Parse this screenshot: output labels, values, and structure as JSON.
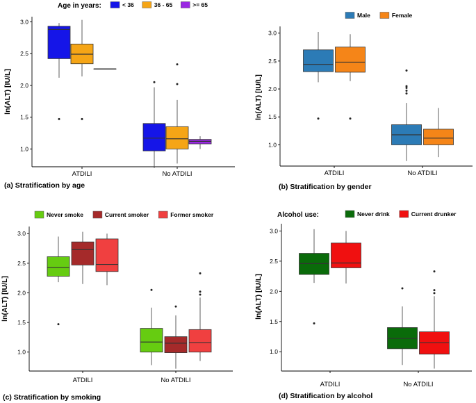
{
  "chart_data": [
    {
      "id": "a",
      "type": "box",
      "caption": "(a) Stratification by age",
      "ylabel": "ln(ALT) [IU/L]",
      "ylim": [
        0.72,
        3.08
      ],
      "yticks": [
        "1.0",
        "1.5",
        "2.0",
        "2.5",
        "3.0"
      ],
      "categories": [
        "ATDILI",
        "No ATDILI"
      ],
      "legend": {
        "title": "Age in years:",
        "items": [
          {
            "label": "< 36",
            "color": "#1515e8"
          },
          {
            "label": "36 - 65",
            "color": "#f5a516"
          },
          {
            "label": ">= 65",
            "color": "#9a28e3"
          }
        ]
      },
      "series": [
        {
          "name": "< 36",
          "color": "#1515e8",
          "boxes": [
            {
              "category": "ATDILI",
              "min": 2.12,
              "q1": 2.42,
              "median": 2.88,
              "q3": 2.93,
              "max": 2.98,
              "outliers": [
                1.47
              ]
            },
            {
              "category": "No ATDILI",
              "min": 0.7,
              "q1": 0.97,
              "median": 1.17,
              "q3": 1.4,
              "max": 1.97,
              "outliers": [
                2.05
              ]
            }
          ]
        },
        {
          "name": "36 - 65",
          "color": "#f5a516",
          "boxes": [
            {
              "category": "ATDILI",
              "min": 2.14,
              "q1": 2.34,
              "median": 2.49,
              "q3": 2.65,
              "max": 3.03,
              "outliers": [
                1.47
              ]
            },
            {
              "category": "No ATDILI",
              "min": 0.77,
              "q1": 1.0,
              "median": 1.16,
              "q3": 1.35,
              "max": 1.77,
              "outliers": [
                2.02,
                2.33
              ]
            }
          ]
        },
        {
          "name": ">= 65",
          "color": "#9a28e3",
          "boxes": [
            {
              "category": "ATDILI",
              "min": 2.26,
              "q1": 2.26,
              "median": 2.26,
              "q3": 2.26,
              "max": 2.26,
              "outliers": []
            },
            {
              "category": "No ATDILI",
              "min": 1.0,
              "q1": 1.08,
              "median": 1.12,
              "q3": 1.15,
              "max": 1.2,
              "outliers": []
            }
          ]
        }
      ]
    },
    {
      "id": "b",
      "type": "box",
      "caption": "(b) Stratification by gender",
      "ylabel": "ln(ALT) [IU/L]",
      "ylim": [
        0.62,
        3.12
      ],
      "yticks": [
        "1.0",
        "1.5",
        "2.0",
        "2.5",
        "3.0"
      ],
      "categories": [
        "ATDILI",
        "No ATDILI"
      ],
      "legend": {
        "title": "",
        "items": [
          {
            "label": "Male",
            "color": "#2c7bb6"
          },
          {
            "label": "Female",
            "color": "#f58518"
          }
        ]
      },
      "series": [
        {
          "name": "Male",
          "color": "#2c7bb6",
          "boxes": [
            {
              "category": "ATDILI",
              "min": 2.12,
              "q1": 2.31,
              "median": 2.44,
              "q3": 2.7,
              "max": 3.02,
              "outliers": [
                1.47
              ]
            },
            {
              "category": "No ATDILI",
              "min": 0.71,
              "q1": 1.0,
              "median": 1.18,
              "q3": 1.36,
              "max": 1.75,
              "outliers": [
                1.92,
                1.97,
                2.02,
                2.05,
                2.33
              ]
            }
          ]
        },
        {
          "name": "Female",
          "color": "#f58518",
          "boxes": [
            {
              "category": "ATDILI",
              "min": 2.14,
              "q1": 2.3,
              "median": 2.48,
              "q3": 2.75,
              "max": 2.98,
              "outliers": [
                1.47
              ]
            },
            {
              "category": "No ATDILI",
              "min": 0.78,
              "q1": 1.0,
              "median": 1.12,
              "q3": 1.28,
              "max": 1.66,
              "outliers": []
            }
          ]
        }
      ]
    },
    {
      "id": "c",
      "type": "box",
      "caption": "(c) Stratification by smoking",
      "ylabel": "ln(ALT) [IU/L]",
      "ylim": [
        0.68,
        3.12
      ],
      "yticks": [
        "1.0",
        "1.5",
        "2.0",
        "2.5",
        "3.0"
      ],
      "categories": [
        "ATDILI",
        "No ATDILI"
      ],
      "legend": {
        "title": "",
        "items": [
          {
            "label": "Never smoke",
            "color": "#66cc11"
          },
          {
            "label": "Current smoker",
            "color": "#a52a2a"
          },
          {
            "label": "Former smoker",
            "color": "#f04040"
          }
        ]
      },
      "series": [
        {
          "name": "Never smoke",
          "color": "#66cc11",
          "boxes": [
            {
              "category": "ATDILI",
              "min": 2.18,
              "q1": 2.28,
              "median": 2.43,
              "q3": 2.61,
              "max": 2.95,
              "outliers": [
                1.47
              ]
            },
            {
              "category": "No ATDILI",
              "min": 0.78,
              "q1": 1.0,
              "median": 1.17,
              "q3": 1.4,
              "max": 1.75,
              "outliers": [
                2.05
              ]
            }
          ]
        },
        {
          "name": "Current smoker",
          "color": "#a52a2a",
          "boxes": [
            {
              "category": "ATDILI",
              "min": 2.15,
              "q1": 2.47,
              "median": 2.73,
              "q3": 2.86,
              "max": 3.03,
              "outliers": []
            },
            {
              "category": "No ATDILI",
              "min": 0.72,
              "q1": 0.99,
              "median": 1.15,
              "q3": 1.26,
              "max": 1.62,
              "outliers": [
                1.77
              ]
            }
          ]
        },
        {
          "name": "Former smoker",
          "color": "#f04040",
          "boxes": [
            {
              "category": "ATDILI",
              "min": 2.13,
              "q1": 2.36,
              "median": 2.48,
              "q3": 2.91,
              "max": 3.0,
              "outliers": []
            },
            {
              "category": "No ATDILI",
              "min": 0.85,
              "q1": 1.0,
              "median": 1.16,
              "q3": 1.38,
              "max": 1.92,
              "outliers": [
                1.97,
                2.02,
                2.33
              ]
            }
          ]
        }
      ]
    },
    {
      "id": "d",
      "type": "box",
      "caption": "(d) Stratification by alcohol",
      "ylabel": "ln(ALT) [IU/L]",
      "ylim": [
        0.68,
        3.12
      ],
      "yticks": [
        "1.0",
        "1.5",
        "2.0",
        "2.5",
        "3.0"
      ],
      "categories": [
        "ATDILI",
        "No ATDILI"
      ],
      "legend": {
        "title": "Alcohol use:",
        "items": [
          {
            "label": "Never drink",
            "color": "#0a6b0a"
          },
          {
            "label": "Current drunker",
            "color": "#f01010"
          }
        ]
      },
      "series": [
        {
          "name": "Never drink",
          "color": "#0a6b0a",
          "boxes": [
            {
              "category": "ATDILI",
              "min": 2.14,
              "q1": 2.28,
              "median": 2.46,
              "q3": 2.63,
              "max": 3.03,
              "outliers": [
                1.47
              ]
            },
            {
              "category": "No ATDILI",
              "min": 0.78,
              "q1": 1.05,
              "median": 1.22,
              "q3": 1.4,
              "max": 1.75,
              "outliers": [
                2.05
              ]
            }
          ]
        },
        {
          "name": "Current drunker",
          "color": "#f01010",
          "boxes": [
            {
              "category": "ATDILI",
              "min": 2.13,
              "q1": 2.39,
              "median": 2.47,
              "q3": 2.8,
              "max": 3.0,
              "outliers": []
            },
            {
              "category": "No ATDILI",
              "min": 0.72,
              "q1": 0.96,
              "median": 1.15,
              "q3": 1.33,
              "max": 1.92,
              "outliers": [
                1.97,
                2.02,
                2.33
              ]
            }
          ]
        }
      ]
    }
  ]
}
